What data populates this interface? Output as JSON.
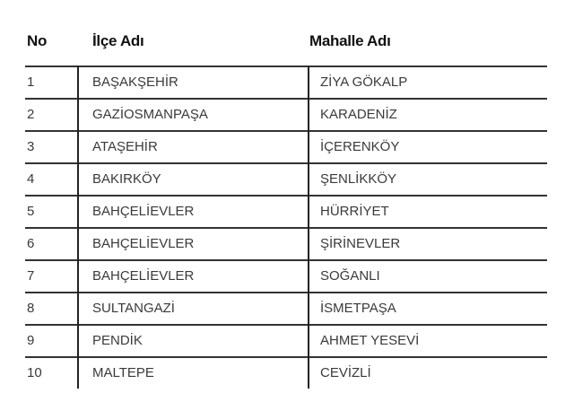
{
  "headers": [
    "No",
    "İlçe Adı",
    "Mahalle Adı"
  ],
  "rows": [
    [
      "1",
      "BAŞAKŞEHİR",
      "ZİYA GÖKALP"
    ],
    [
      "2",
      "GAZİOSMANPAŞA",
      "KARADENİZ"
    ],
    [
      "3",
      "ATAŞEHİR",
      "İÇERENKÖY"
    ],
    [
      "4",
      "BAKIRKÖY",
      "ŞENLİKKÖY"
    ],
    [
      "5",
      "BAHÇELİEVLER",
      "HÜRRİYET"
    ],
    [
      "6",
      "BAHÇELİEVLER",
      "ŞİRİNEVLER"
    ],
    [
      "7",
      "BAHÇELİEVLER",
      "SOĞANLI"
    ],
    [
      "8",
      "SULTANGAZİ",
      "İSMETPAŞA"
    ],
    [
      "9",
      "PENDİK",
      "AHMET YESEVİ"
    ],
    [
      "10",
      "MALTEPE",
      "CEVİZLİ"
    ]
  ]
}
